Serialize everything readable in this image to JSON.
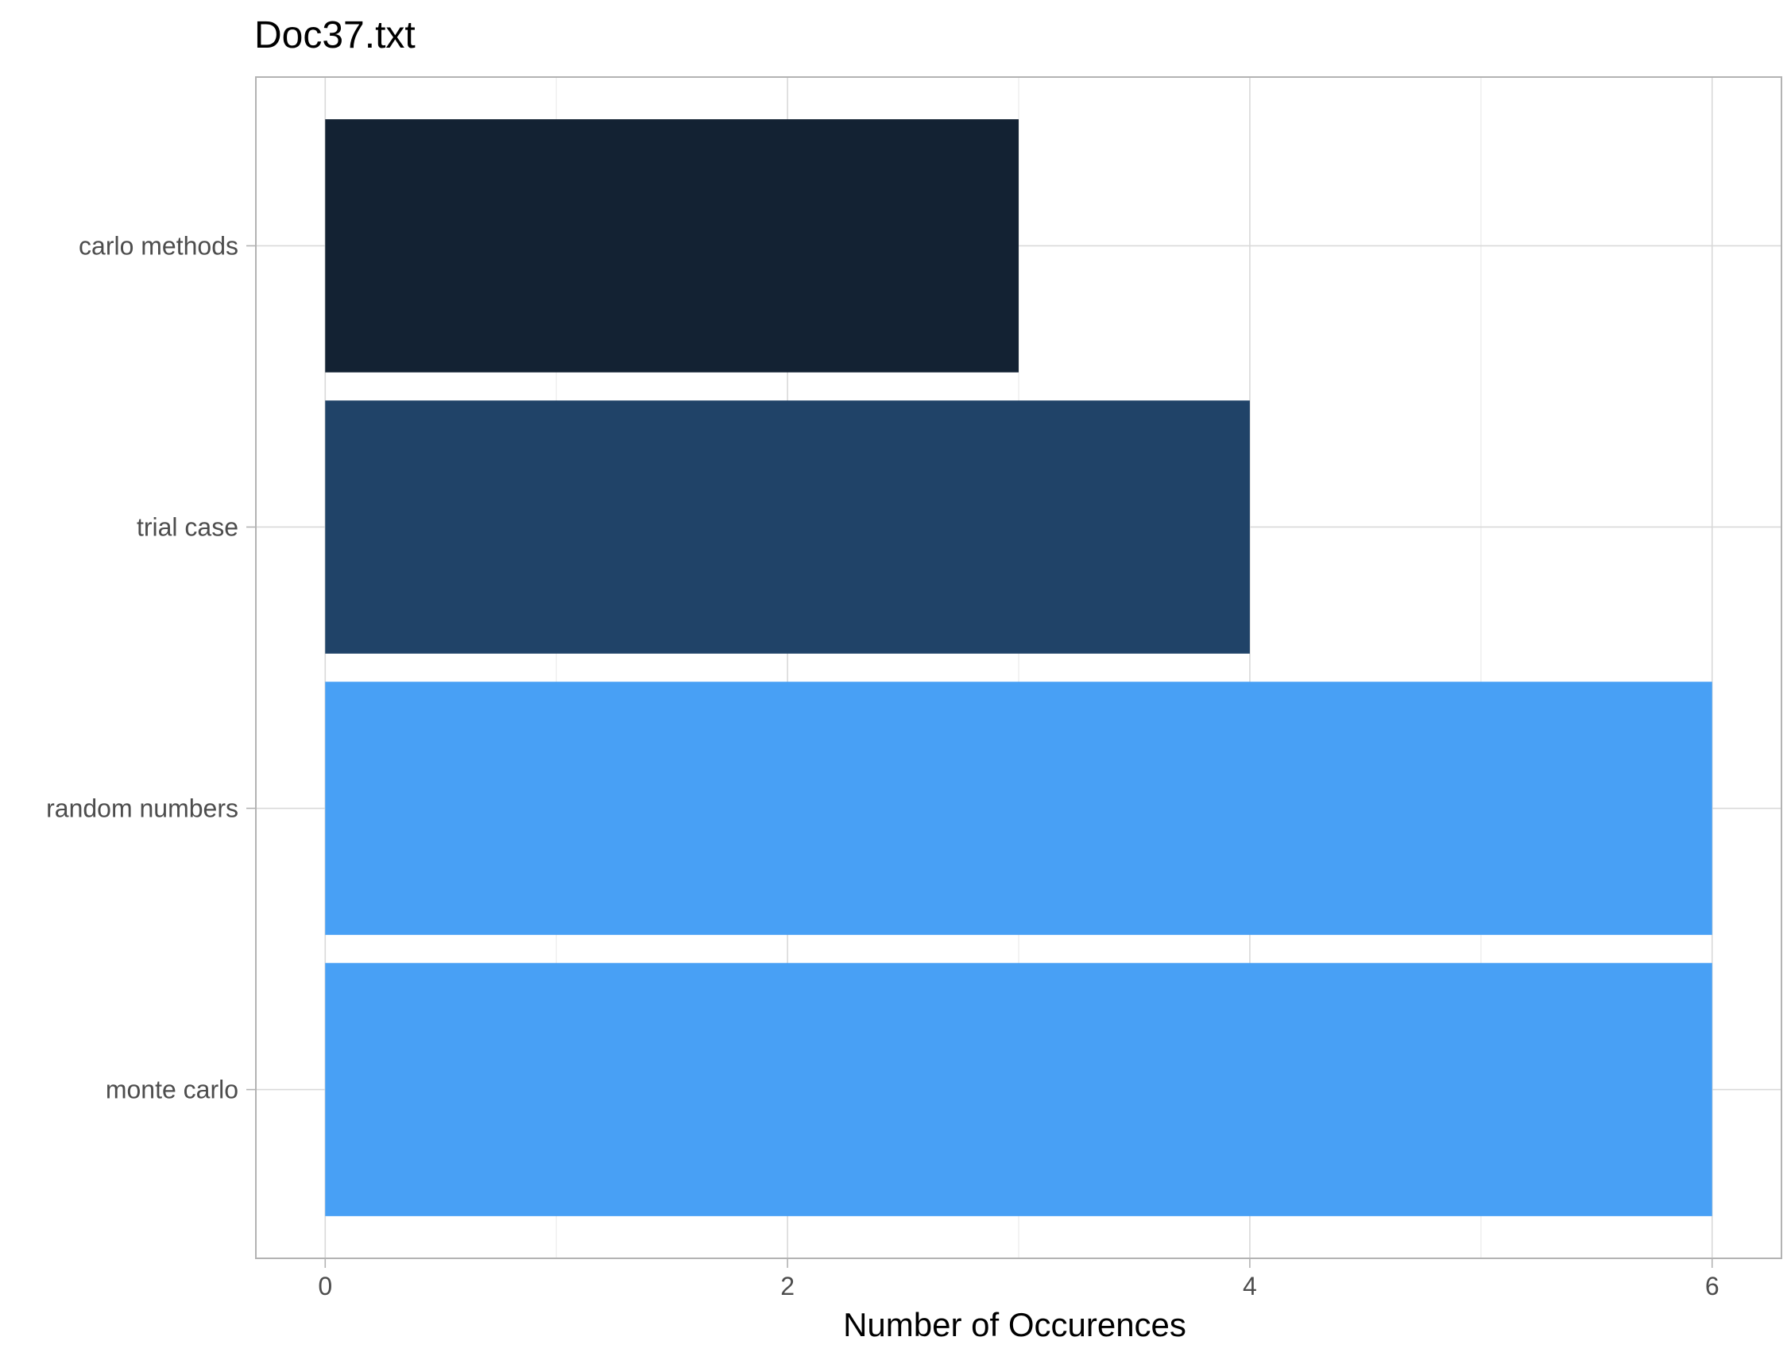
{
  "chart_data": {
    "type": "bar",
    "orientation": "horizontal",
    "title": "Doc37.txt",
    "xlabel": "Number of Occurences",
    "ylabel": "",
    "categories": [
      "monte carlo",
      "random numbers",
      "trial case",
      "carlo methods"
    ],
    "values": [
      6,
      6,
      4,
      3
    ],
    "bar_colors": [
      "#48A0F5",
      "#48A0F5",
      "#204368",
      "#132233"
    ],
    "xlim": [
      -0.3,
      6.3
    ],
    "x_ticks": [
      0,
      2,
      4,
      6
    ],
    "x_tick_labels": [
      "0",
      "2",
      "4",
      "6"
    ],
    "grid": true,
    "legend": "none"
  },
  "colors": {
    "background": "#ffffff",
    "grid_major": "#d9d9d9",
    "grid_minor": "#ebebeb",
    "panel_border": "#b3b3b3",
    "tick_label": "#4d4d4d",
    "title": "#000000"
  }
}
